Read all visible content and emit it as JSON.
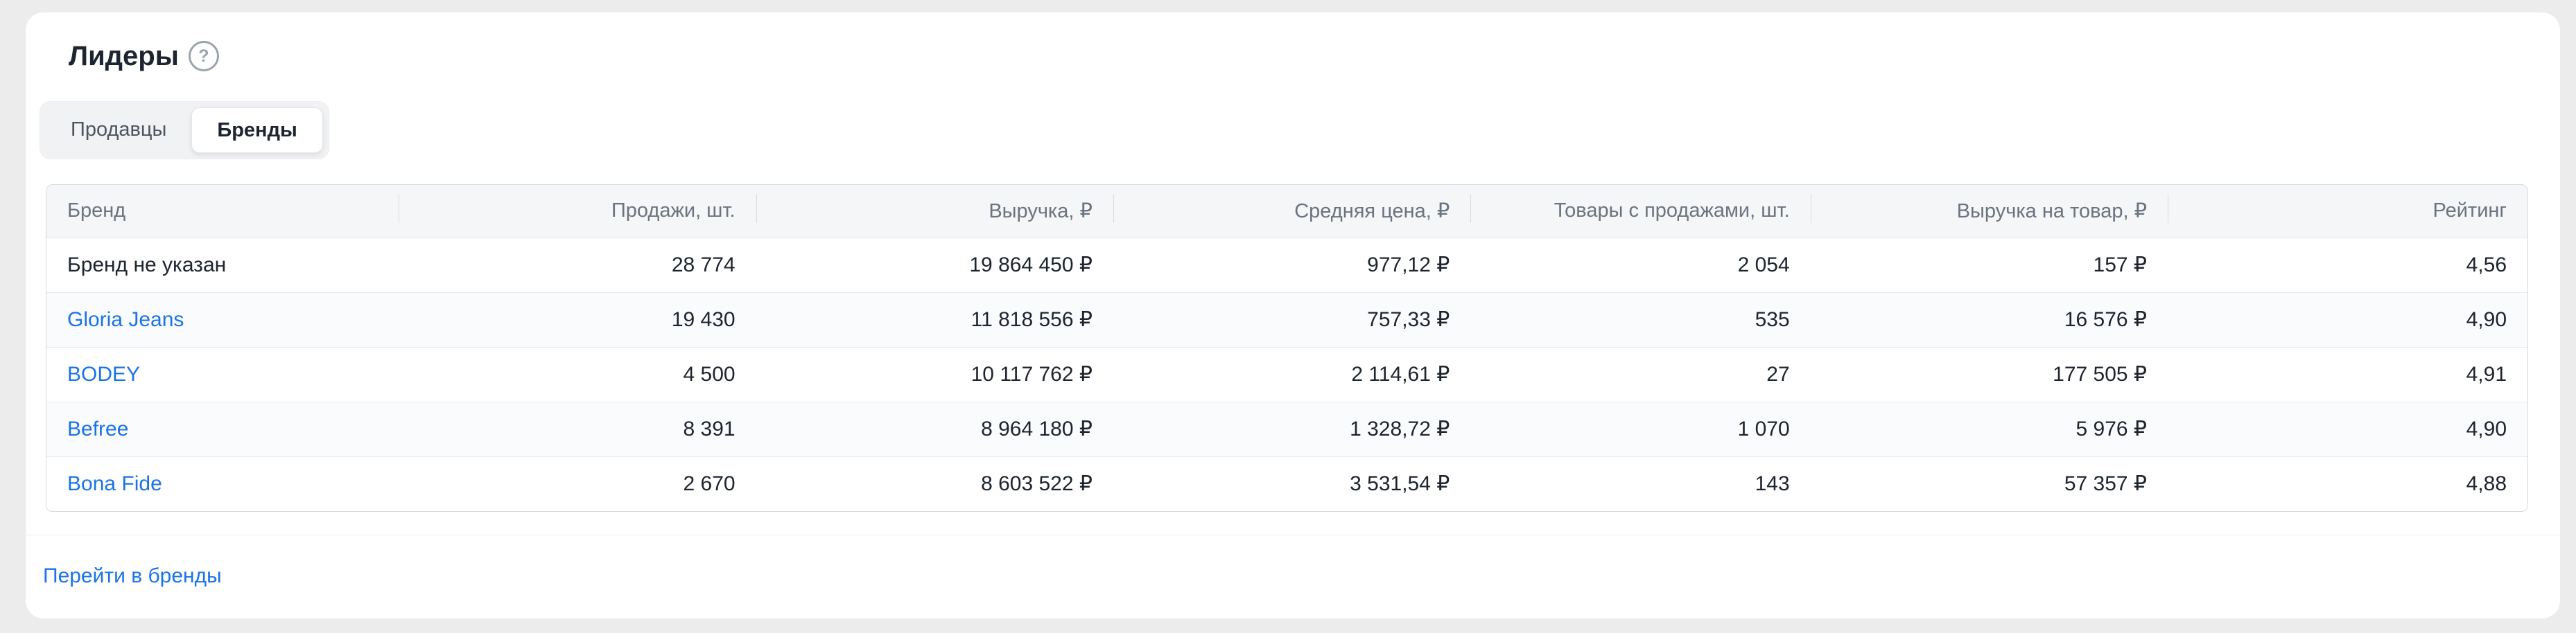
{
  "colors": {
    "page_background": "#ececec",
    "card_background": "#ffffff",
    "link_blue": "#1a73e8",
    "header_gray": "#6a7480"
  },
  "header": {
    "title": "Лидеры",
    "help_glyph": "?"
  },
  "tabs": [
    {
      "label": "Продавцы",
      "active": false
    },
    {
      "label": "Бренды",
      "active": true
    }
  ],
  "table": {
    "columns": [
      {
        "label": "Бренд",
        "align": "left"
      },
      {
        "label": "Продажи, шт.",
        "align": "right"
      },
      {
        "label": "Выручка, ₽",
        "align": "right"
      },
      {
        "label": "Средняя цена, ₽",
        "align": "right"
      },
      {
        "label": "Товары с продажами, шт.",
        "align": "right"
      },
      {
        "label": "Выручка на товар, ₽",
        "align": "right"
      },
      {
        "label": "Рейтинг",
        "align": "right"
      }
    ],
    "rows": [
      {
        "brand": "Бренд не указан",
        "is_link": false,
        "sales_units": "28 774",
        "revenue": "19 864 450 ₽",
        "avg_price": "977,12 ₽",
        "products_with_sales": "2 054",
        "revenue_per_product": "157 ₽",
        "rating": "4,56"
      },
      {
        "brand": "Gloria Jeans",
        "is_link": true,
        "sales_units": "19 430",
        "revenue": "11 818 556 ₽",
        "avg_price": "757,33 ₽",
        "products_with_sales": "535",
        "revenue_per_product": "16 576 ₽",
        "rating": "4,90"
      },
      {
        "brand": "BODEY",
        "is_link": true,
        "sales_units": "4 500",
        "revenue": "10 117 762 ₽",
        "avg_price": "2 114,61 ₽",
        "products_with_sales": "27",
        "revenue_per_product": "177 505 ₽",
        "rating": "4,91"
      },
      {
        "brand": "Befree",
        "is_link": true,
        "sales_units": "8 391",
        "revenue": "8 964 180 ₽",
        "avg_price": "1 328,72 ₽",
        "products_with_sales": "1 070",
        "revenue_per_product": "5 976 ₽",
        "rating": "4,90"
      },
      {
        "brand": "Bona Fide",
        "is_link": true,
        "sales_units": "2 670",
        "revenue": "8 603 522 ₽",
        "avg_price": "3 531,54 ₽",
        "products_with_sales": "143",
        "revenue_per_product": "57 357 ₽",
        "rating": "4,88"
      }
    ]
  },
  "footer": {
    "link_label": "Перейти в бренды"
  }
}
